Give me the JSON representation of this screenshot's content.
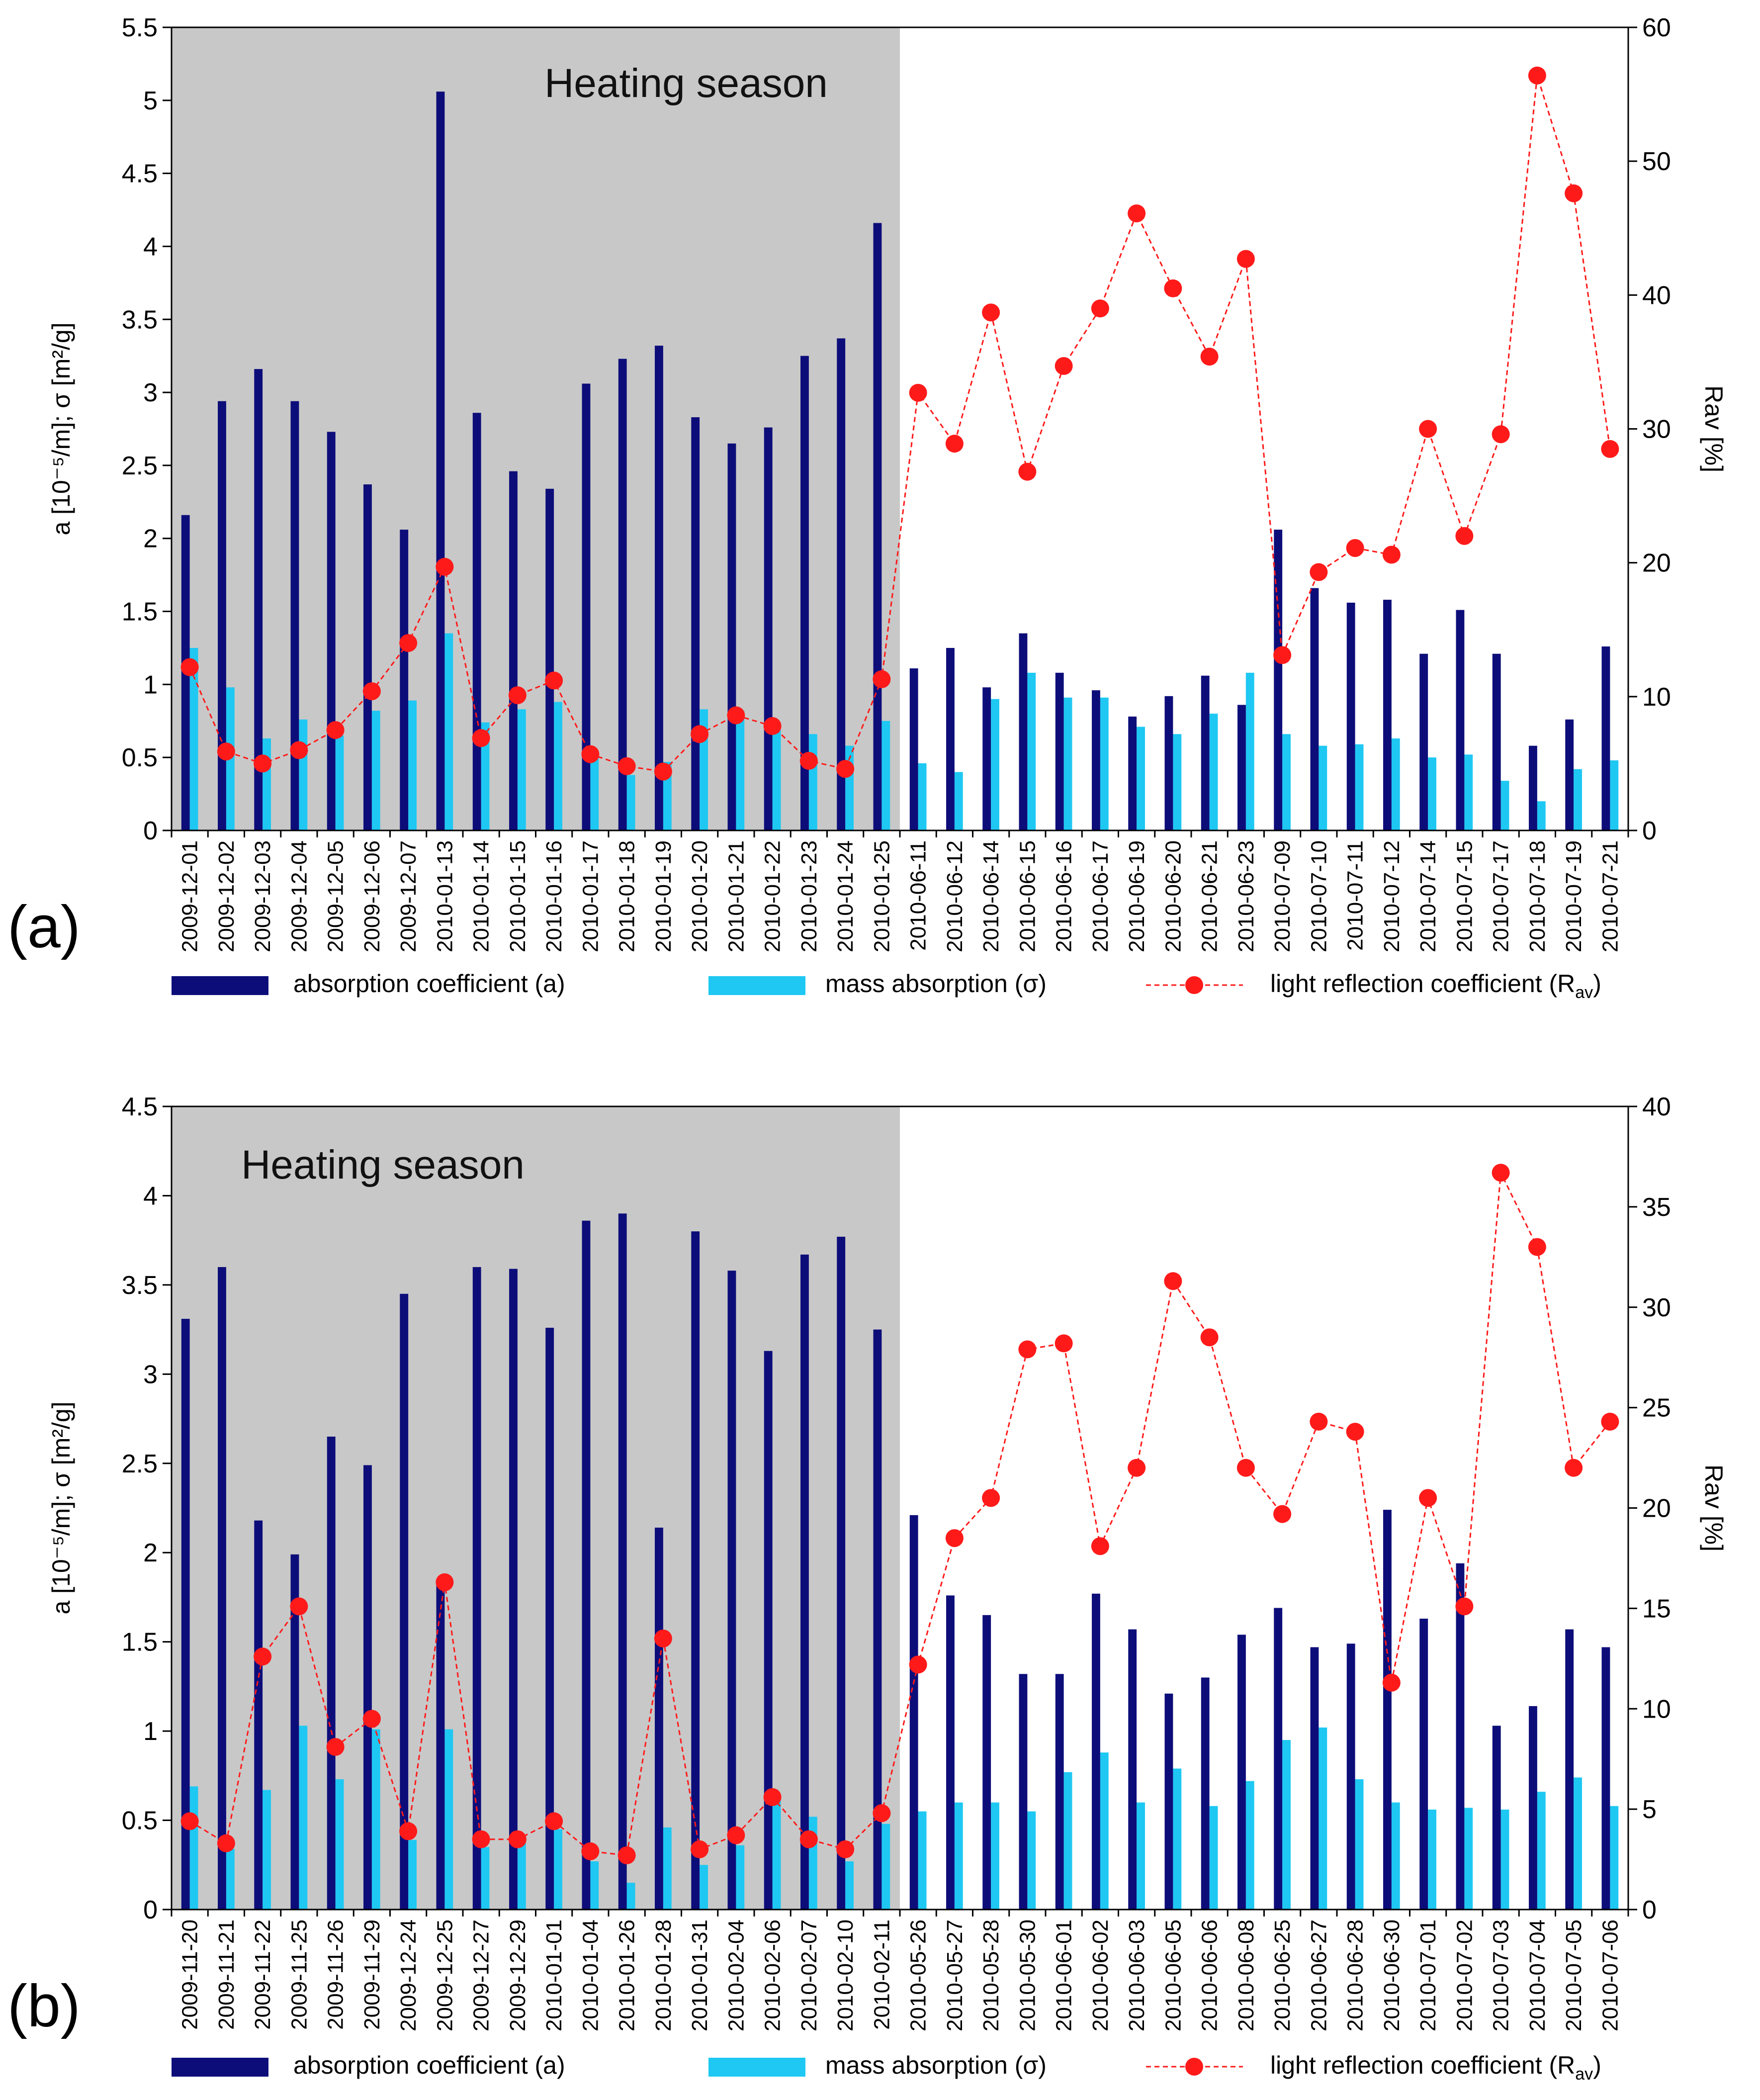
{
  "colors": {
    "absorption": "#0d0d7a",
    "mass_absorption": "#1ec8f2",
    "reflection": "#ff1a1a",
    "heating_shade": "#c8c8c8",
    "axis": "#000000"
  },
  "chart_data": [
    {
      "type": "bar",
      "panel_label": "(a)",
      "shaded_label": "Heating season",
      "shaded_categories": 20,
      "ylabel_left": "a [10⁻⁵/m]; σ [m²/g]",
      "ylabel_right": "Rav [%]",
      "ylim_left": [
        0,
        5.5
      ],
      "ylim_right": [
        0,
        60
      ],
      "yticks_left": [
        "0",
        "0.5",
        "1",
        "1.5",
        "2",
        "2.5",
        "3",
        "3.5",
        "4",
        "4.5",
        "5",
        "5.5"
      ],
      "yticks_right": [
        "0",
        "10",
        "20",
        "30",
        "40",
        "50",
        "60"
      ],
      "categories": [
        "2009-12-01",
        "2009-12-02",
        "2009-12-03",
        "2009-12-04",
        "2009-12-05",
        "2009-12-06",
        "2009-12-07",
        "2010-01-13",
        "2010-01-14",
        "2010-01-15",
        "2010-01-16",
        "2010-01-17",
        "2010-01-18",
        "2010-01-19",
        "2010-01-20",
        "2010-01-21",
        "2010-01-22",
        "2010-01-23",
        "2010-01-24",
        "2010-01-25",
        "2010-06-11",
        "2010-06-12",
        "2010-06-14",
        "2010-06-15",
        "2010-06-16",
        "2010-06-17",
        "2010-06-19",
        "2010-06-20",
        "2010-06-21",
        "2010-06-23",
        "2010-07-09",
        "2010-07-10",
        "2010-07-11",
        "2010-07-12",
        "2010-07-14",
        "2010-07-15",
        "2010-07-17",
        "2010-07-18",
        "2010-07-19",
        "2010-07-21"
      ],
      "series": [
        {
          "name": "absorption coefficient  (a)",
          "axis": "left",
          "kind": "bar",
          "values": [
            2.16,
            2.94,
            3.16,
            2.94,
            2.73,
            2.37,
            2.06,
            5.06,
            2.86,
            2.46,
            2.34,
            3.06,
            3.23,
            3.32,
            2.83,
            2.65,
            2.76,
            3.25,
            3.37,
            4.16,
            1.11,
            1.25,
            0.98,
            1.35,
            1.08,
            0.96,
            0.78,
            0.92,
            1.06,
            0.86,
            2.06,
            1.66,
            1.56,
            1.58,
            1.21,
            1.51,
            1.21,
            0.58,
            0.76,
            1.26
          ]
        },
        {
          "name": "mass absorption (σ)",
          "axis": "left",
          "kind": "bar",
          "values": [
            1.25,
            0.98,
            0.63,
            0.76,
            0.65,
            0.82,
            0.89,
            1.35,
            0.74,
            0.83,
            0.88,
            0.54,
            0.38,
            0.47,
            0.83,
            0.82,
            0.7,
            0.66,
            0.58,
            0.75,
            0.46,
            0.4,
            0.9,
            1.08,
            0.91,
            0.91,
            0.71,
            0.66,
            0.8,
            1.08,
            0.66,
            0.58,
            0.59,
            0.63,
            0.5,
            0.52,
            0.34,
            0.2,
            0.42,
            0.48
          ]
        },
        {
          "name": "light reflection coefficient (R",
          "subscript": "av",
          "suffix": ")",
          "axis": "right",
          "kind": "line",
          "values": [
            12.2,
            5.9,
            5.0,
            6.0,
            7.5,
            10.4,
            14.0,
            19.7,
            6.9,
            10.1,
            11.2,
            5.7,
            4.8,
            4.4,
            7.2,
            8.6,
            7.8,
            5.2,
            4.6,
            11.3,
            32.7,
            28.9,
            38.7,
            26.8,
            34.7,
            39.0,
            46.1,
            40.5,
            35.4,
            42.7,
            13.1,
            19.3,
            21.1,
            20.6,
            30.0,
            22.0,
            29.6,
            56.4,
            47.6,
            28.5
          ]
        }
      ]
    },
    {
      "type": "bar",
      "panel_label": "(b)",
      "shaded_label": "Heating season",
      "shaded_categories": 20,
      "ylabel_left": "a [10⁻⁵/m]; σ [m²/g]",
      "ylabel_right": "Rav [%]",
      "ylim_left": [
        0,
        4.5
      ],
      "ylim_right": [
        0,
        40
      ],
      "yticks_left": [
        "0",
        "0.5",
        "1",
        "1.5",
        "2",
        "2.5",
        "3",
        "3.5",
        "4",
        "4.5"
      ],
      "yticks_right": [
        "0",
        "5",
        "10",
        "15",
        "20",
        "25",
        "30",
        "35",
        "40"
      ],
      "categories": [
        "2009-11-20",
        "2009-11-21",
        "2009-11-22",
        "2009-11-25",
        "2009-11-26",
        "2009-11-29",
        "2009-12-24",
        "2009-12-25",
        "2009-12-27",
        "2009-12-29",
        "2010-01-01",
        "2010-01-04",
        "2010-01-26",
        "2010-01-28",
        "2010-01-31",
        "2010-02-04",
        "2010-02-06",
        "2010-02-07",
        "2010-02-10",
        "2010-02-11",
        "2010-05-26",
        "2010-05-27",
        "2010-05-28",
        "2010-05-30",
        "2010-06-01",
        "2010-06-02",
        "2010-06-03",
        "2010-06-05",
        "2010-06-06",
        "2010-06-08",
        "2010-06-25",
        "2010-06-27",
        "2010-06-28",
        "2010-06-30",
        "2010-07-01",
        "2010-07-02",
        "2010-07-03",
        "2010-07-04",
        "2010-07-05",
        "2010-07-06"
      ],
      "series": [
        {
          "name": "absorption coefficient  (a)",
          "axis": "left",
          "kind": "bar",
          "values": [
            3.31,
            3.6,
            2.18,
            1.99,
            2.65,
            2.49,
            3.45,
            1.82,
            3.6,
            3.59,
            3.26,
            3.86,
            3.9,
            2.14,
            3.8,
            3.58,
            3.13,
            3.67,
            3.77,
            3.25,
            2.21,
            1.76,
            1.65,
            1.32,
            1.32,
            1.77,
            1.57,
            1.21,
            1.3,
            1.54,
            1.69,
            1.47,
            1.49,
            2.24,
            1.63,
            1.94,
            1.03,
            1.14,
            1.57,
            1.47
          ]
        },
        {
          "name": "mass absorption (σ)",
          "axis": "left",
          "kind": "bar",
          "values": [
            0.69,
            0.34,
            0.67,
            1.03,
            0.73,
            1.01,
            0.39,
            1.01,
            0.35,
            0.41,
            0.45,
            0.27,
            0.15,
            0.46,
            0.25,
            0.36,
            0.62,
            0.52,
            0.27,
            0.48,
            0.55,
            0.6,
            0.6,
            0.55,
            0.77,
            0.88,
            0.6,
            0.79,
            0.58,
            0.72,
            0.95,
            1.02,
            0.73,
            0.6,
            0.56,
            0.57,
            0.56,
            0.66,
            0.74,
            0.58
          ]
        },
        {
          "name": "light reflection coefficient (R",
          "subscript": "av",
          "suffix": ")",
          "axis": "right",
          "kind": "line",
          "values": [
            4.4,
            3.3,
            12.6,
            15.1,
            8.1,
            9.5,
            3.9,
            16.3,
            3.5,
            3.5,
            4.4,
            2.9,
            2.7,
            13.5,
            3.0,
            3.7,
            5.6,
            3.5,
            3.0,
            4.8,
            12.2,
            18.5,
            20.5,
            27.9,
            28.2,
            18.1,
            22.0,
            31.3,
            28.5,
            22.0,
            19.7,
            24.3,
            23.8,
            11.3,
            20.5,
            15.1,
            36.7,
            33.0,
            22.0,
            24.3
          ]
        }
      ]
    }
  ]
}
